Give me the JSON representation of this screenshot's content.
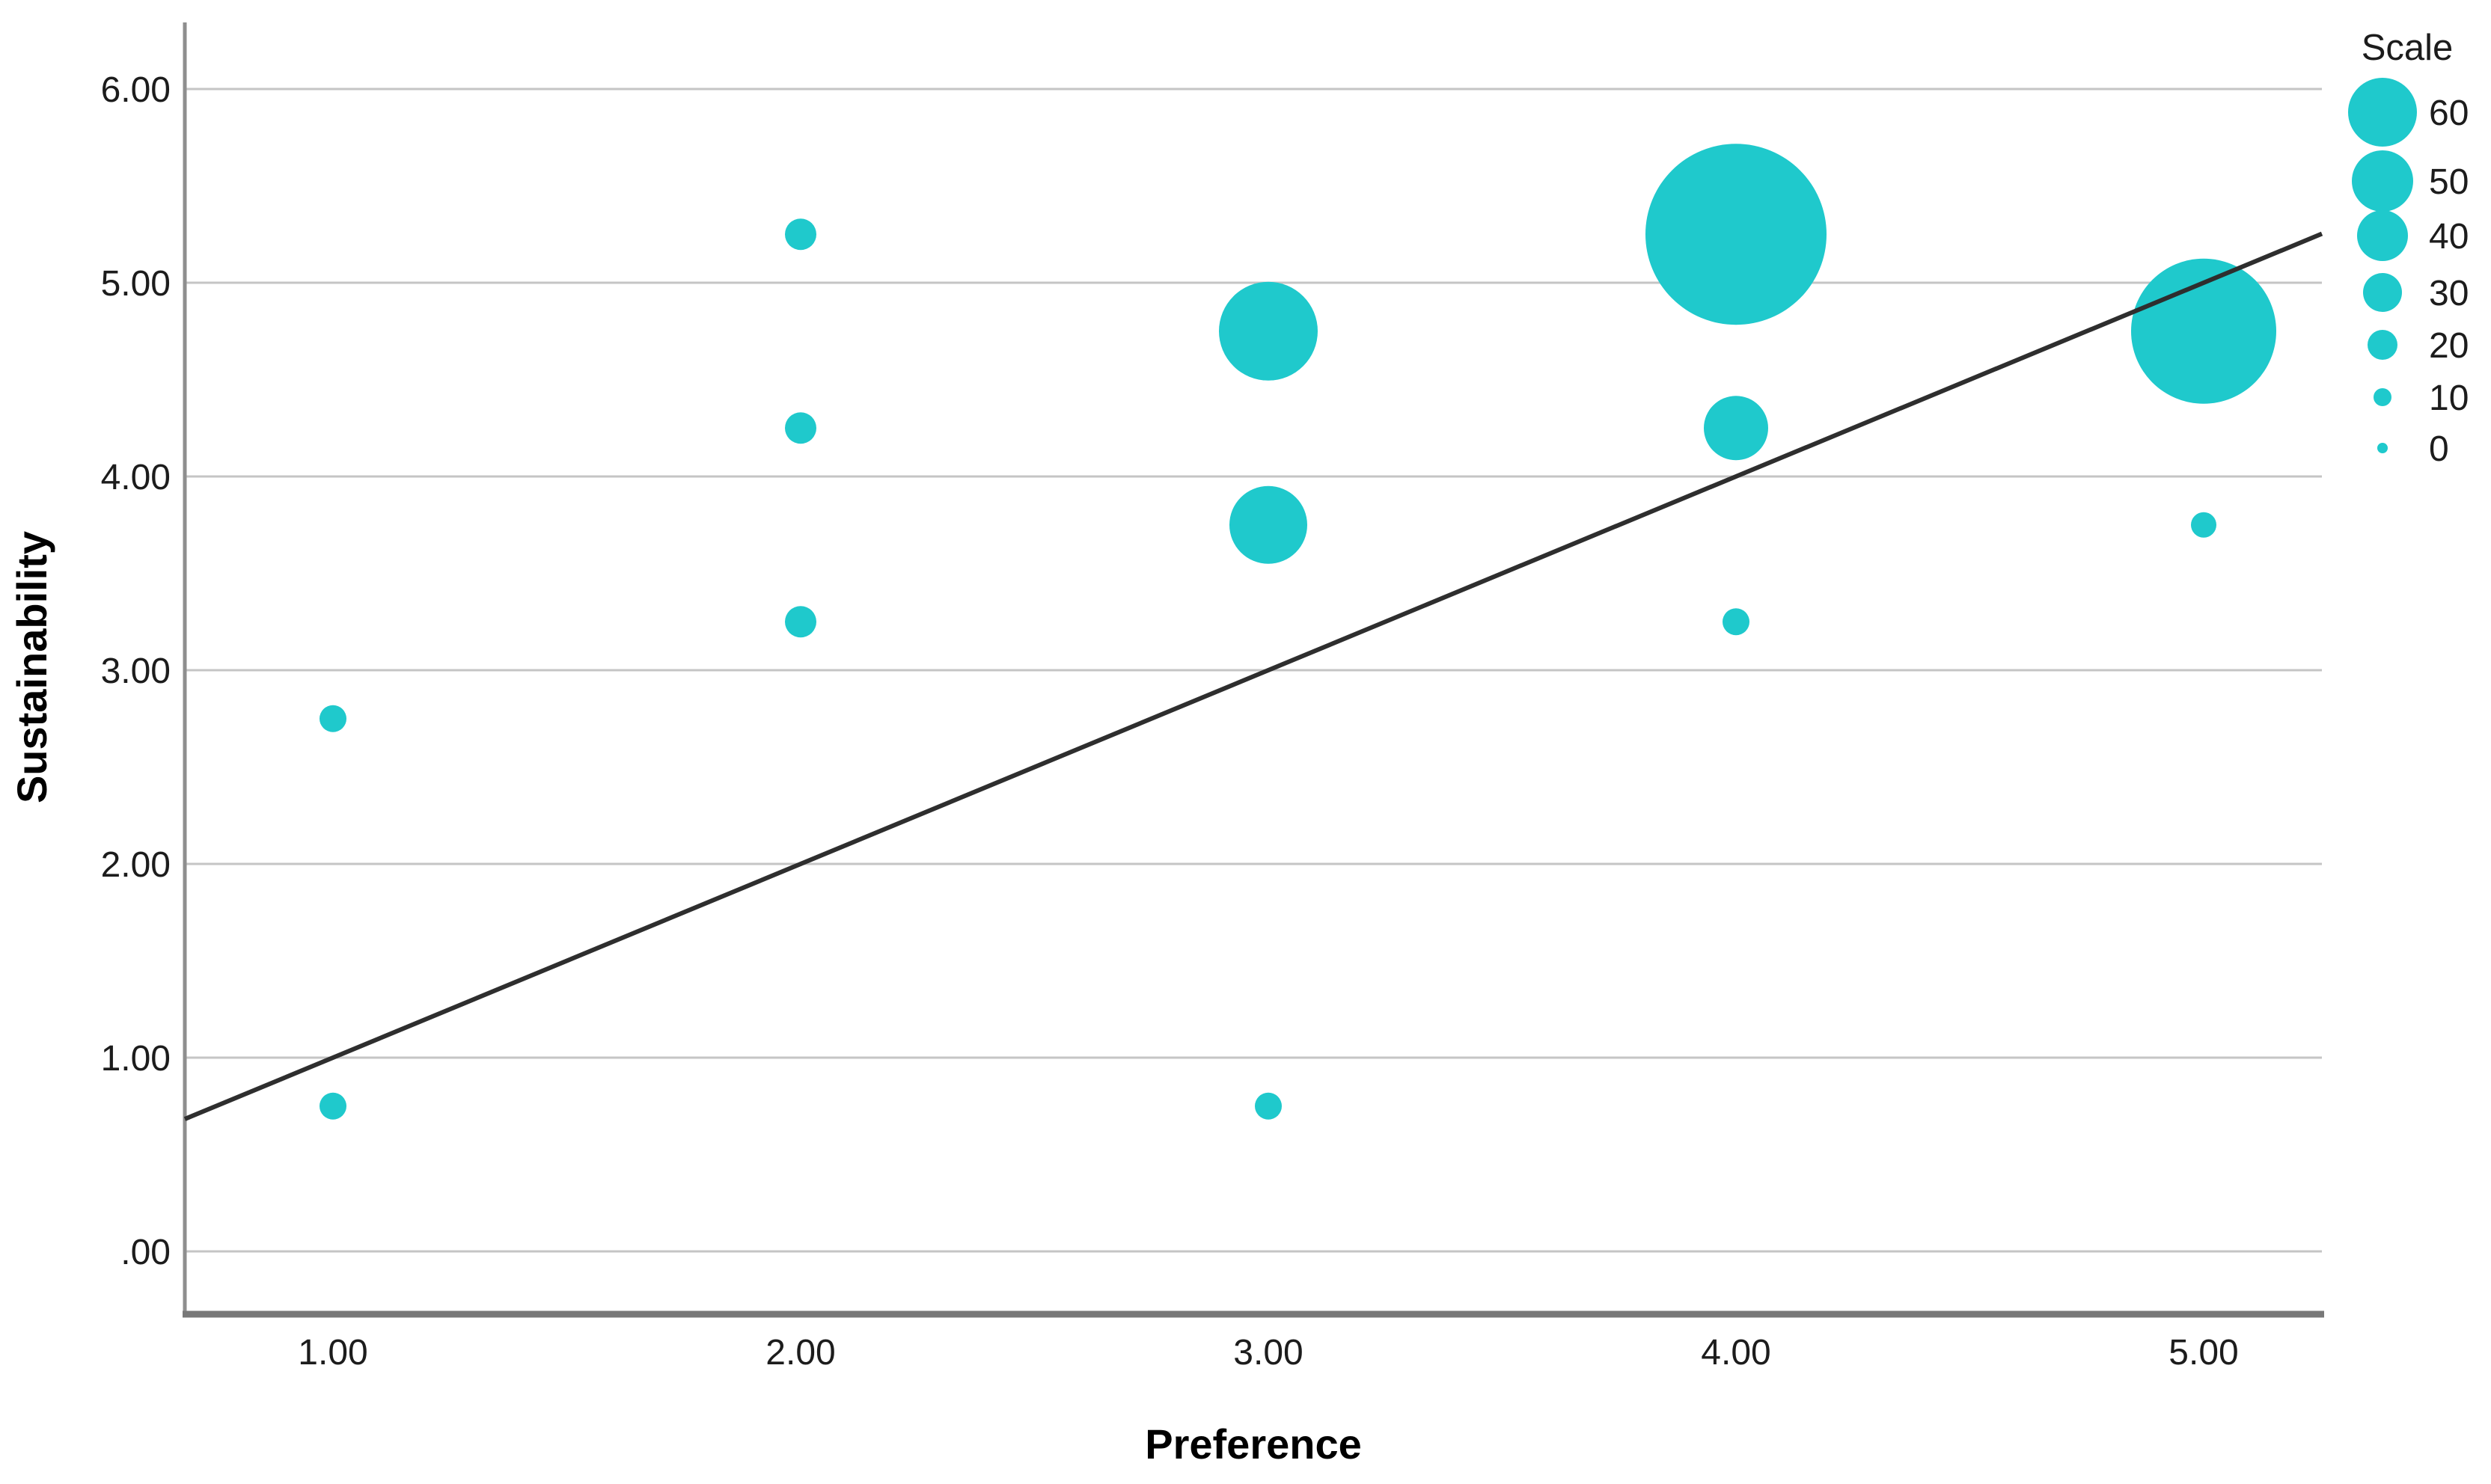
{
  "chart_data": {
    "type": "scatter",
    "subtype": "bubble",
    "title": "",
    "xlabel": "Preference",
    "ylabel": "Sustainability",
    "x_tick_labels": [
      "1.00",
      "2.00",
      "3.00",
      "4.00",
      "5.00"
    ],
    "x_tick_values": [
      1,
      2,
      3,
      4,
      5
    ],
    "y_tick_labels": [
      ".00",
      "1.00",
      "2.00",
      "3.00",
      "4.00",
      "5.00",
      "6.00"
    ],
    "y_tick_values": [
      0,
      1,
      2,
      3,
      4,
      5,
      6
    ],
    "xlim": [
      0.68,
      5.25
    ],
    "ylim": [
      -0.32,
      6.35
    ],
    "grid": "horizontal-only",
    "legend_position": "top-right",
    "points": [
      {
        "x": 1,
        "y": 2.75,
        "scale": 4,
        "r": 18
      },
      {
        "x": 1,
        "y": 0.75,
        "scale": 4,
        "r": 18
      },
      {
        "x": 2,
        "y": 5.25,
        "scale": 6,
        "r": 21
      },
      {
        "x": 2,
        "y": 4.25,
        "scale": 6,
        "r": 21
      },
      {
        "x": 2,
        "y": 3.25,
        "scale": 6,
        "r": 21
      },
      {
        "x": 3,
        "y": 4.75,
        "scale": 30,
        "r": 66
      },
      {
        "x": 3,
        "y": 3.75,
        "scale": 22,
        "r": 52
      },
      {
        "x": 3,
        "y": 0.75,
        "scale": 4,
        "r": 18
      },
      {
        "x": 4,
        "y": 5.25,
        "scale": 60,
        "r": 121
      },
      {
        "x": 4,
        "y": 4.25,
        "scale": 17,
        "r": 43
      },
      {
        "x": 4,
        "y": 3.25,
        "scale": 4,
        "r": 18
      },
      {
        "x": 5,
        "y": 4.75,
        "scale": 46,
        "r": 97
      },
      {
        "x": 5,
        "y": 3.75,
        "scale": 3,
        "r": 17
      }
    ],
    "fit_line": {
      "slope": 1.0,
      "intercept": 0.0
    },
    "legend": {
      "title": "Scale",
      "entries": [
        {
          "label": "60",
          "value": 60,
          "r": 46
        },
        {
          "label": "50",
          "value": 50,
          "r": 41
        },
        {
          "label": "40",
          "value": 40,
          "r": 34
        },
        {
          "label": "30",
          "value": 30,
          "r": 26
        },
        {
          "label": "20",
          "value": 20,
          "r": 20
        },
        {
          "label": "10",
          "value": 10,
          "r": 12
        },
        {
          "label": "0",
          "value": 0,
          "r": 7
        }
      ]
    },
    "colors": {
      "bubble": "#1fc9cc",
      "fit_line": "#2e2e2e",
      "gridline": "#c5c5c5",
      "y_axis": "#8e8e8e",
      "x_axis": "#787878",
      "text": "#1c1c1c"
    }
  }
}
